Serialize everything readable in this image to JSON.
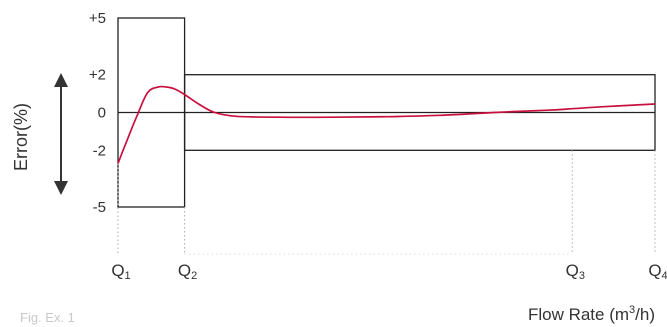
{
  "chart_data": {
    "type": "line",
    "title": "",
    "ylabel": "Error(%)",
    "xlabel_main": "Flow  Rate (m",
    "xlabel_sup": "3",
    "xlabel_tail": "/h)",
    "y_ticks": [
      {
        "value": 5,
        "label": "+5"
      },
      {
        "value": 2,
        "label": "+2"
      },
      {
        "value": 0,
        "label": "0"
      },
      {
        "value": -2,
        "label": "-2"
      },
      {
        "value": -5,
        "label": "-5"
      }
    ],
    "x_points": [
      {
        "name": "Q1",
        "base": "Q",
        "sub": "1",
        "position": 0
      },
      {
        "name": "Q2",
        "base": "Q",
        "sub": "2",
        "position": 0.124
      },
      {
        "name": "Q3",
        "base": "Q",
        "sub": "3",
        "position": 0.846
      },
      {
        "name": "Q4",
        "base": "Q",
        "sub": "4",
        "position": 1
      }
    ],
    "ylim": [
      -5,
      5
    ],
    "tolerance_zones": [
      {
        "from": "Q1",
        "to": "Q2",
        "ymin": -5,
        "ymax": 5
      },
      {
        "from": "Q2",
        "to": "Q4",
        "ymin": -2,
        "ymax": 2
      }
    ],
    "series": [
      {
        "color": "#c8103e",
        "x": [
          0.0,
          0.015,
          0.035,
          0.055,
          0.075,
          0.09,
          0.105,
          0.124,
          0.15,
          0.18,
          0.22,
          0.3,
          0.4,
          0.5,
          0.6,
          0.7,
          0.8,
          0.846,
          0.9,
          1.0
        ],
        "y": [
          -2.7,
          -1.6,
          -0.2,
          1.05,
          1.35,
          1.35,
          1.25,
          0.95,
          0.45,
          0.0,
          -0.2,
          -0.25,
          -0.25,
          -0.22,
          -0.15,
          0.0,
          0.12,
          0.2,
          0.3,
          0.45
        ]
      }
    ],
    "faint_caption": "Fig. Ex. 1"
  },
  "colors": {
    "line": "#c8103e",
    "frame": "#222222",
    "dotted": "#aaaaaa"
  }
}
